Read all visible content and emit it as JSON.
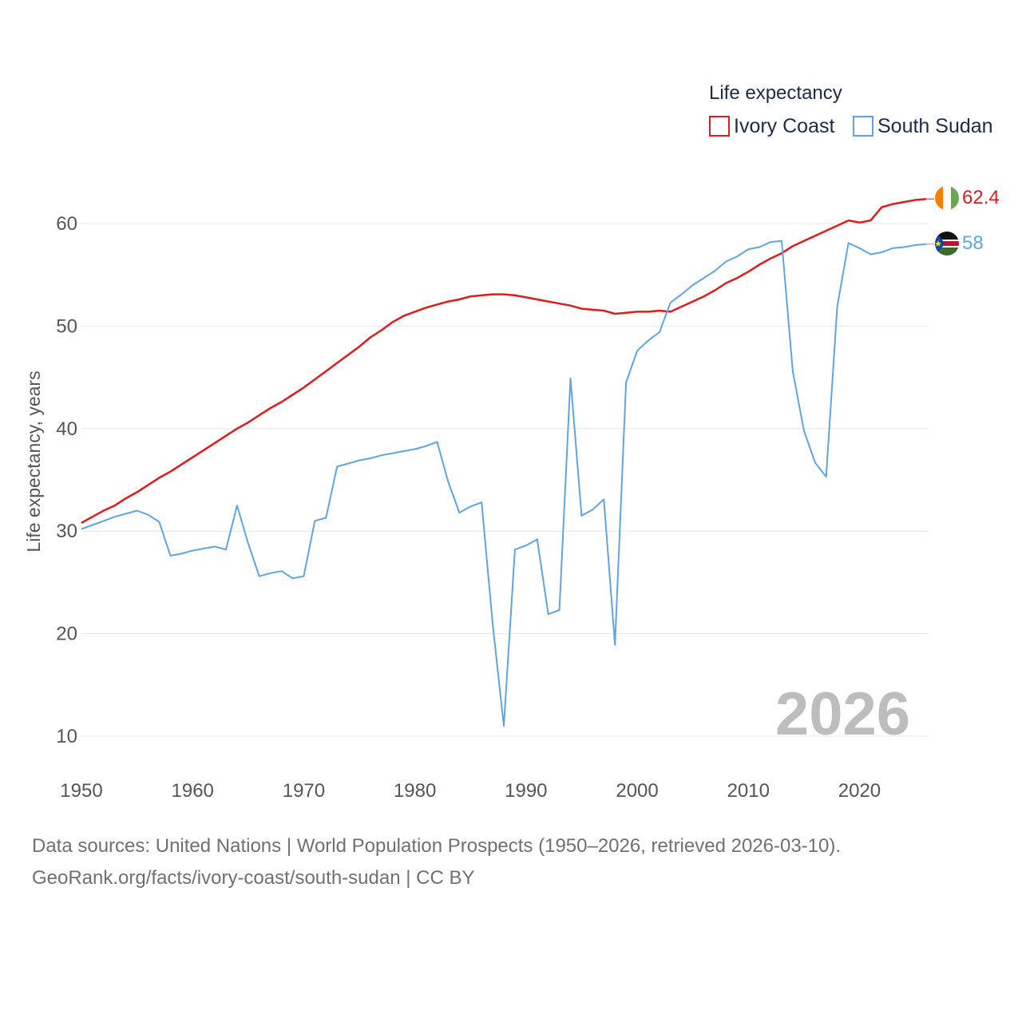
{
  "chart_data": {
    "type": "line",
    "xlabel": "",
    "ylabel": "Life expectancy, years",
    "xlim": [
      1950,
      2026
    ],
    "ylim": [
      10,
      62
    ],
    "xticks": [
      1950,
      1960,
      1970,
      1980,
      1990,
      2000,
      2010,
      2020
    ],
    "yticks": [
      10,
      20,
      30,
      40,
      50,
      60
    ],
    "grid": true,
    "legend": {
      "title": "Life expectancy",
      "position": "top-right"
    },
    "watermark_year": "2026",
    "x": [
      1950,
      1951,
      1952,
      1953,
      1954,
      1955,
      1956,
      1957,
      1958,
      1959,
      1960,
      1961,
      1962,
      1963,
      1964,
      1965,
      1966,
      1967,
      1968,
      1969,
      1970,
      1971,
      1972,
      1973,
      1974,
      1975,
      1976,
      1977,
      1978,
      1979,
      1980,
      1981,
      1982,
      1983,
      1984,
      1985,
      1986,
      1987,
      1988,
      1989,
      1990,
      1991,
      1992,
      1993,
      1994,
      1995,
      1996,
      1997,
      1998,
      1999,
      2000,
      2001,
      2002,
      2003,
      2004,
      2005,
      2006,
      2007,
      2008,
      2009,
      2010,
      2011,
      2012,
      2013,
      2014,
      2015,
      2016,
      2017,
      2018,
      2019,
      2020,
      2021,
      2022,
      2023,
      2024,
      2025,
      2026
    ],
    "series": [
      {
        "name": "Ivory Coast",
        "color": "#e31a1c",
        "end_label": "62.4",
        "flag_icon": "ivory-coast-flag-icon",
        "values": [
          30.8,
          31.4,
          32.0,
          32.5,
          33.2,
          33.8,
          34.5,
          35.2,
          35.8,
          36.5,
          37.2,
          37.9,
          38.6,
          39.3,
          40.0,
          40.6,
          41.3,
          42.0,
          42.6,
          43.3,
          44.0,
          44.8,
          45.6,
          46.4,
          47.2,
          48.0,
          48.9,
          49.6,
          50.4,
          51.0,
          51.4,
          51.8,
          52.1,
          52.4,
          52.6,
          52.9,
          53.0,
          53.1,
          53.1,
          53.0,
          52.8,
          52.6,
          52.4,
          52.2,
          52.0,
          51.7,
          51.6,
          51.5,
          51.2,
          51.3,
          51.4,
          51.4,
          51.5,
          51.4,
          51.9,
          52.4,
          52.9,
          53.5,
          54.2,
          54.7,
          55.3,
          56.0,
          56.6,
          57.1,
          57.8,
          58.3,
          58.8,
          59.3,
          59.8,
          60.3,
          60.1,
          60.3,
          61.6,
          61.9,
          62.1,
          62.3,
          62.4
        ]
      },
      {
        "name": "South Sudan",
        "color": "#5fa5e3",
        "end_label": "58",
        "flag_icon": "south-sudan-flag-icon",
        "values": [
          30.2,
          30.6,
          31.0,
          31.4,
          31.7,
          32.0,
          31.6,
          30.9,
          27.6,
          27.8,
          28.1,
          28.3,
          28.5,
          28.2,
          32.5,
          28.8,
          25.6,
          25.9,
          26.1,
          25.4,
          25.6,
          31.0,
          31.3,
          36.3,
          36.6,
          36.9,
          37.1,
          37.4,
          37.6,
          37.8,
          38.0,
          38.3,
          38.7,
          34.8,
          31.8,
          32.4,
          32.8,
          20.9,
          11.0,
          28.2,
          28.6,
          29.2,
          21.9,
          22.3,
          44.9,
          31.5,
          32.1,
          33.1,
          18.9,
          44.5,
          47.6,
          48.6,
          49.4,
          52.3,
          53.1,
          54.0,
          54.7,
          55.4,
          56.3,
          56.8,
          57.5,
          57.7,
          58.2,
          58.3,
          45.6,
          39.8,
          36.7,
          35.3,
          51.9,
          58.1,
          57.6,
          57.0,
          57.2,
          57.6,
          57.7,
          57.9,
          58.0
        ]
      }
    ]
  },
  "footer": {
    "line1": "Data sources: United Nations | World Population Prospects (1950–2026, retrieved 2026-03-10).",
    "line2": "GeoRank.org/facts/ivory-coast/south-sudan | CC BY"
  },
  "colors": {
    "grid": "#e6e6e6",
    "tick_text": "#555555",
    "watermark": "#bdbdbd"
  }
}
